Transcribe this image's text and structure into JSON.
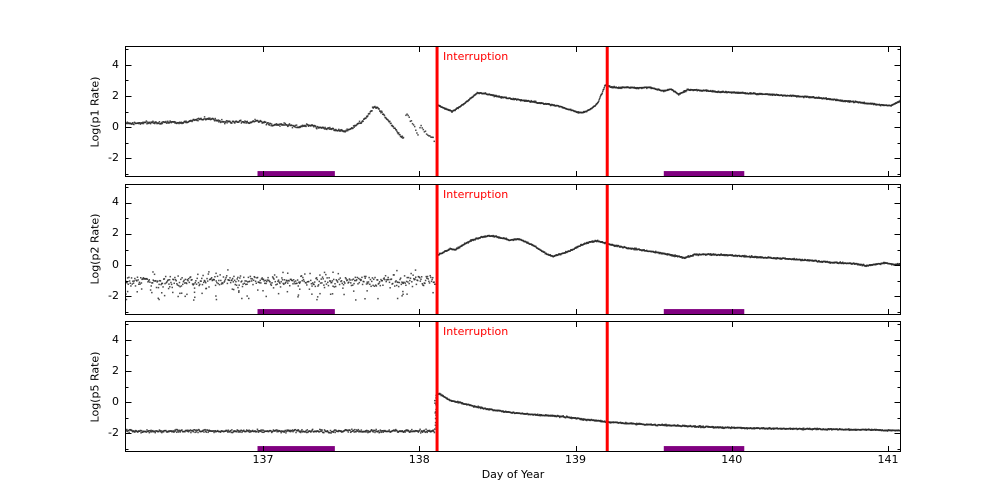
{
  "chart_data": {
    "type": "scatter",
    "title": "",
    "xlabel": "Day of Year",
    "xlim": [
      136.117,
      141.083
    ],
    "xticks": [
      {
        "value": 137,
        "label": "137"
      },
      {
        "value": 138,
        "label": "138"
      },
      {
        "value": 139,
        "label": "139"
      },
      {
        "value": 140,
        "label": "140"
      },
      {
        "value": 141,
        "label": "141"
      }
    ],
    "colors": {
      "data_points": "#2a2a2a",
      "interruption_line": "#ff0000",
      "interruption_text": "#ff0000",
      "event_bar": "#800080",
      "axis": "#000000",
      "background": "#ffffff"
    },
    "interruption_lines_x": [
      138.114,
      139.203
    ],
    "event_bars": [
      {
        "x0": 136.965,
        "x1": 137.46
      },
      {
        "x0": 139.565,
        "x1": 140.08
      }
    ],
    "event_bar_y": {
      "top": -2.82,
      "bottom": -3.2
    },
    "panels": [
      {
        "ylabel": "Log(p1 Rate)",
        "interruption_label": "Interruption",
        "ylim": [
          -3.2,
          5.2
        ],
        "yticks": [
          {
            "value": -2,
            "label": "-2"
          },
          {
            "value": 0,
            "label": "0"
          },
          {
            "value": 2,
            "label": "2"
          },
          {
            "value": 4,
            "label": "4"
          }
        ],
        "yminor": [
          -3,
          -1,
          1,
          3,
          5
        ],
        "series": [
          {
            "name": "p1-pre-interruption",
            "style": "dots",
            "noise": 0.045,
            "step": 0.0038,
            "seed": 11,
            "x": [
              136.117,
              136.17,
              136.25,
              136.33,
              136.4,
              136.47,
              136.53,
              136.58,
              136.62,
              136.67,
              136.72,
              136.78,
              136.85,
              136.92,
              136.95,
              137.02,
              137.06,
              137.12,
              137.18,
              137.22,
              137.28,
              137.33,
              137.38,
              137.43,
              137.48,
              137.52,
              137.55,
              137.58,
              137.62,
              137.66,
              137.69,
              137.71,
              137.73,
              137.76,
              137.79,
              137.82,
              137.85,
              137.87,
              137.9
            ],
            "y": [
              0.28,
              0.22,
              0.3,
              0.28,
              0.35,
              0.28,
              0.37,
              0.48,
              0.55,
              0.5,
              0.38,
              0.32,
              0.35,
              0.28,
              0.43,
              0.25,
              0.12,
              0.18,
              0.1,
              0.0,
              0.12,
              0.05,
              -0.05,
              -0.12,
              -0.2,
              -0.25,
              -0.15,
              0.0,
              0.25,
              0.6,
              1.0,
              1.28,
              1.25,
              0.95,
              0.55,
              0.2,
              -0.15,
              -0.45,
              -0.68
            ]
          },
          {
            "name": "p1-dropout-a",
            "style": "dots",
            "noise": 0.07,
            "step": 0.007,
            "seed": 12,
            "x": [
              137.915,
              137.95,
              137.975,
              137.995
            ],
            "y": [
              0.85,
              0.45,
              0.0,
              -0.6
            ]
          },
          {
            "name": "p1-dropout-b",
            "style": "dots",
            "noise": 0.07,
            "step": 0.007,
            "seed": 13,
            "x": [
              138.005,
              138.04,
              138.07,
              138.1
            ],
            "y": [
              0.15,
              -0.25,
              -0.6,
              -0.9
            ]
          },
          {
            "name": "p1-post-interruption",
            "style": "dots",
            "noise": 0.022,
            "step": 0.0032,
            "seed": 14,
            "x": [
              138.115,
              138.16,
              138.21,
              138.26,
              138.32,
              138.37,
              138.42,
              138.51,
              138.6,
              138.72,
              138.8,
              138.89,
              138.95,
              139.02,
              139.05,
              139.09,
              139.14,
              139.17,
              139.19,
              139.22,
              139.27,
              139.33,
              139.4,
              139.47,
              139.53,
              139.57,
              139.61,
              139.66,
              139.72,
              139.8,
              139.9,
              140.0,
              140.1,
              140.25,
              140.4,
              140.55,
              140.7,
              140.85,
              140.95,
              141.02,
              141.083
            ],
            "y": [
              1.45,
              1.2,
              1.0,
              1.3,
              1.75,
              2.2,
              2.15,
              1.95,
              1.8,
              1.63,
              1.5,
              1.35,
              1.15,
              0.95,
              0.93,
              1.1,
              1.5,
              2.2,
              2.7,
              2.6,
              2.5,
              2.55,
              2.5,
              2.55,
              2.4,
              2.3,
              2.45,
              2.1,
              2.4,
              2.35,
              2.28,
              2.22,
              2.18,
              2.08,
              2.0,
              1.88,
              1.7,
              1.55,
              1.42,
              1.38,
              1.7
            ]
          }
        ]
      },
      {
        "ylabel": "Log(p2 Rate)",
        "interruption_label": "Interruption",
        "ylim": [
          -3.2,
          5.2
        ],
        "yticks": [
          {
            "value": -2,
            "label": "-2"
          },
          {
            "value": 0,
            "label": "0"
          },
          {
            "value": 2,
            "label": "2"
          },
          {
            "value": 4,
            "label": "4"
          }
        ],
        "yminor": [
          -3,
          -1,
          1,
          3,
          5
        ],
        "series": [
          {
            "name": "p2-pre-interruption-band",
            "style": "band",
            "noise": 0.2,
            "step": 0.0042,
            "seed": 21,
            "x": [
              136.117,
              136.5,
              137.0,
              137.5,
              138.0,
              138.1
            ],
            "y": [
              -1.02,
              -1.06,
              -1.02,
              -1.06,
              -1.01,
              -1.0
            ],
            "outliers": [
              {
                "count": 60,
                "ymin": -2.25,
                "ymax": -1.35,
                "seed": 22
              },
              {
                "count": 10,
                "ymin": -0.55,
                "ymax": -0.3,
                "seed": 24
              }
            ]
          },
          {
            "name": "p2-post-interruption",
            "style": "dots",
            "noise": 0.022,
            "step": 0.0032,
            "seed": 23,
            "x": [
              138.115,
              138.16,
              138.2,
              138.23,
              138.28,
              138.34,
              138.4,
              138.45,
              138.5,
              138.55,
              138.58,
              138.63,
              138.68,
              138.73,
              138.78,
              138.82,
              138.86,
              138.92,
              138.98,
              139.04,
              139.1,
              139.14,
              139.18,
              139.21,
              139.3,
              139.4,
              139.5,
              139.58,
              139.64,
              139.7,
              139.76,
              139.85,
              139.95,
              140.05,
              140.2,
              140.35,
              140.5,
              140.62,
              140.72,
              140.8,
              140.86,
              140.92,
              140.98,
              141.04,
              141.083
            ],
            "y": [
              0.6,
              0.85,
              1.05,
              0.98,
              1.3,
              1.6,
              1.8,
              1.88,
              1.8,
              1.68,
              1.6,
              1.67,
              1.5,
              1.25,
              0.95,
              0.68,
              0.58,
              0.75,
              1.0,
              1.3,
              1.5,
              1.55,
              1.45,
              1.35,
              1.15,
              1.0,
              0.85,
              0.7,
              0.6,
              0.45,
              0.68,
              0.68,
              0.65,
              0.58,
              0.48,
              0.4,
              0.3,
              0.18,
              0.12,
              0.08,
              -0.05,
              0.05,
              0.13,
              0.05,
              0.08
            ]
          }
        ]
      },
      {
        "ylabel": "Log(p5 Rate)",
        "interruption_label": "Interruption",
        "ylim": [
          -3.2,
          5.2
        ],
        "yticks": [
          {
            "value": -2,
            "label": "-2"
          },
          {
            "value": 0,
            "label": "0"
          },
          {
            "value": 2,
            "label": "2"
          },
          {
            "value": 4,
            "label": "4"
          }
        ],
        "yminor": [
          -3,
          -1,
          1,
          3,
          5
        ],
        "series": [
          {
            "name": "p5-pre-interruption",
            "style": "dots",
            "noise": 0.05,
            "step": 0.0038,
            "seed": 31,
            "x": [
              136.117,
              137.0,
              138.1
            ],
            "y": [
              -1.86,
              -1.87,
              -1.85
            ]
          },
          {
            "name": "p5-jump-column",
            "style": "column",
            "seed": 32,
            "x": [
              138.105
            ],
            "ymin": -1.75,
            "ymax": 0.42,
            "count": 16
          },
          {
            "name": "p5-post-interruption-decay",
            "style": "dots",
            "noise": 0.022,
            "step": 0.0032,
            "seed": 33,
            "x": [
              138.115,
              138.13,
              138.16,
              138.2,
              138.27,
              138.35,
              138.48,
              138.6,
              138.7,
              138.8,
              138.86,
              138.92,
              139.05,
              139.21,
              139.35,
              139.5,
              139.65,
              139.8,
              139.95,
              140.1,
              140.3,
              140.5,
              140.7,
              140.9,
              141.0,
              141.083
            ],
            "y": [
              0.5,
              0.52,
              0.33,
              0.1,
              -0.06,
              -0.28,
              -0.52,
              -0.68,
              -0.78,
              -0.85,
              -0.88,
              -0.93,
              -1.1,
              -1.28,
              -1.38,
              -1.45,
              -1.52,
              -1.58,
              -1.63,
              -1.67,
              -1.7,
              -1.73,
              -1.76,
              -1.78,
              -1.82,
              -1.83
            ]
          }
        ]
      }
    ]
  }
}
